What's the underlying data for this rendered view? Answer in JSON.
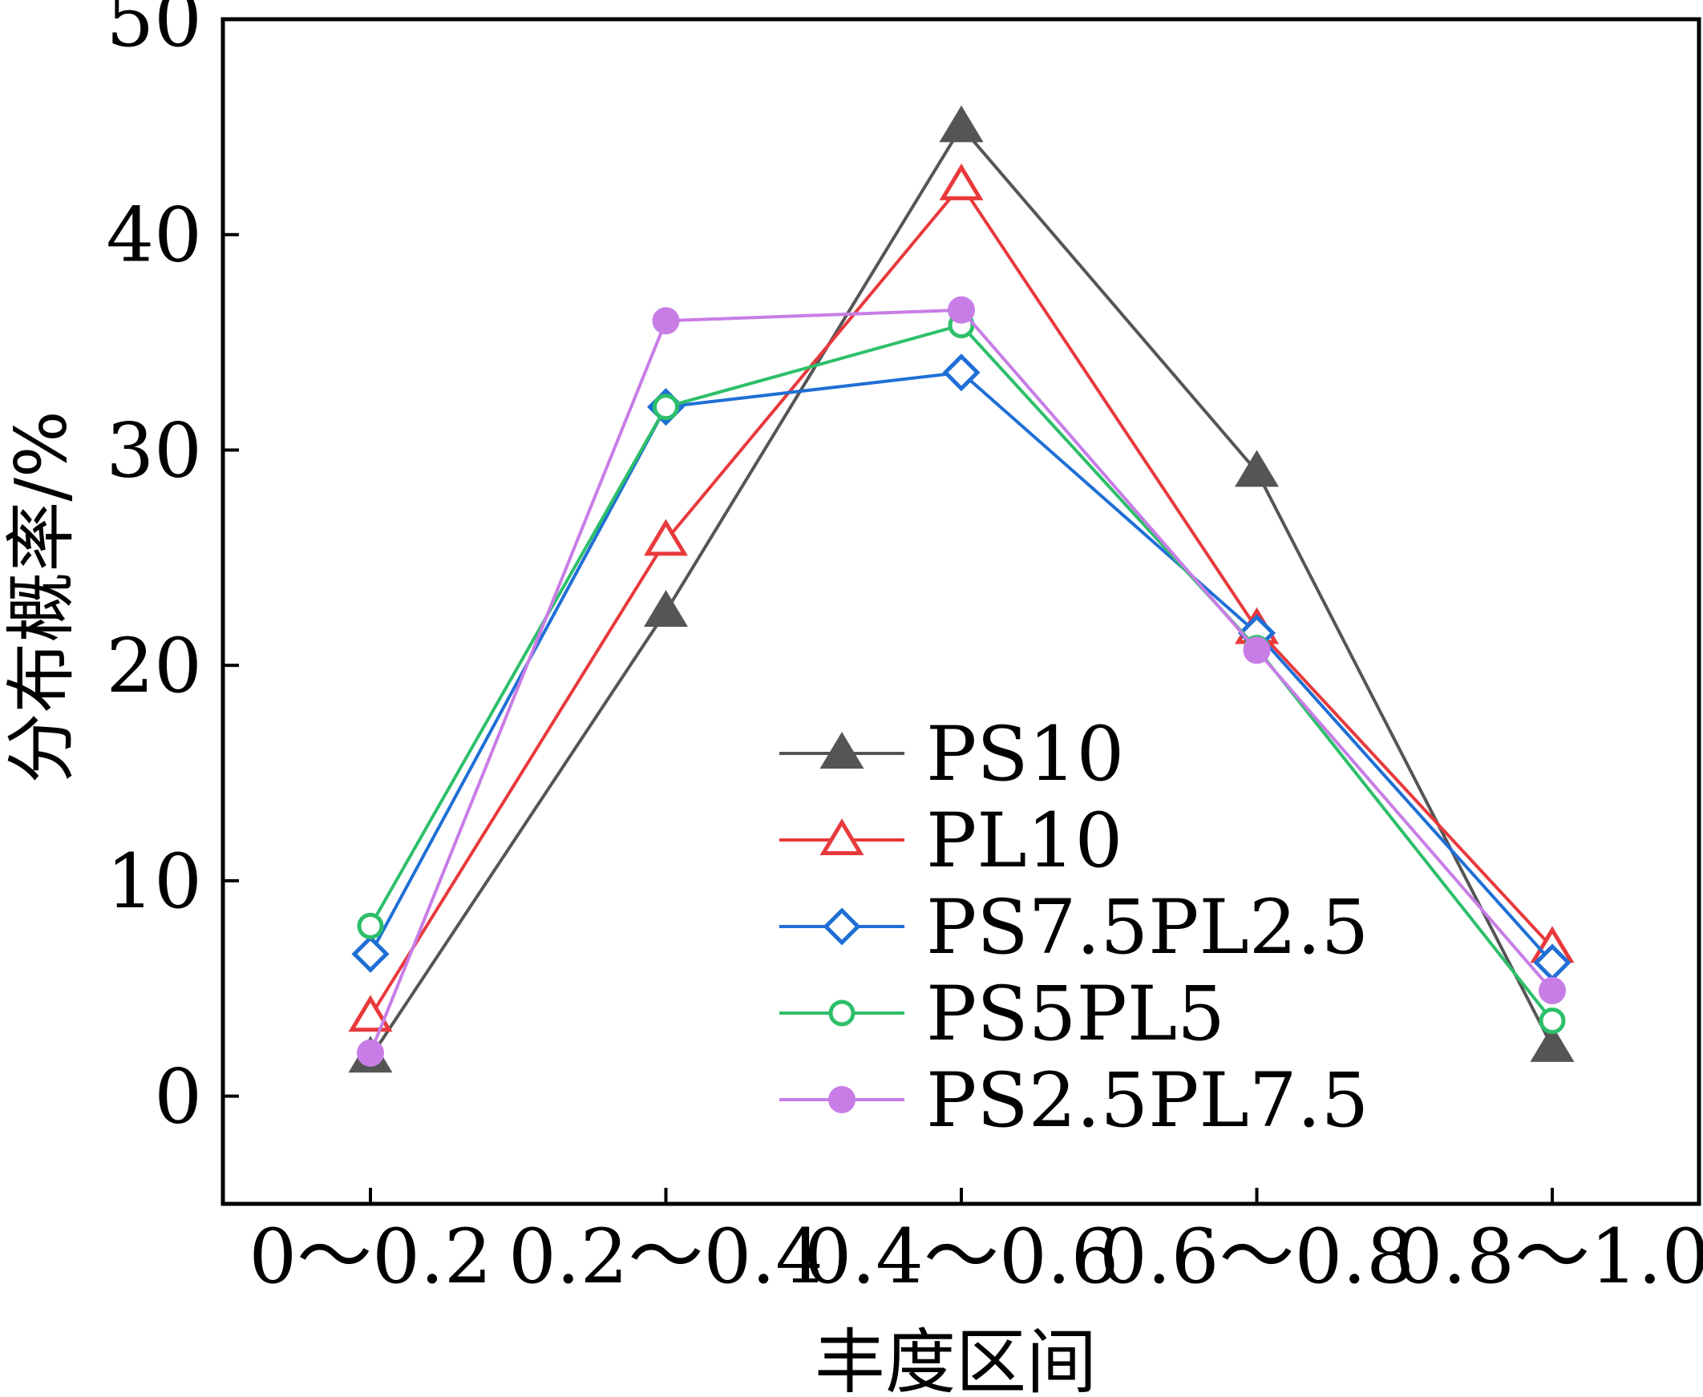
{
  "chart_data": {
    "type": "line",
    "categories": [
      "0～0.2",
      "0.2～0.4",
      "0.4～0.6",
      "0.6～0.8",
      "0.8～1.0"
    ],
    "xlabel": "丰度区间",
    "ylabel": "分布概率/%",
    "ylim": [
      -5,
      50
    ],
    "yticks": [
      0,
      10,
      20,
      30,
      40,
      50
    ],
    "grid": false,
    "legend_position": "bottom-center",
    "series": [
      {
        "name": "PS10",
        "values": [
          1.8,
          22.5,
          45.0,
          29.0,
          2.3
        ],
        "color": "#555555",
        "marker": "triangle-filled"
      },
      {
        "name": "PL10",
        "values": [
          3.7,
          25.8,
          42.3,
          21.7,
          6.9
        ],
        "color": "#e8393c",
        "marker": "triangle-open"
      },
      {
        "name": "PS7.5PL2.5",
        "values": [
          6.6,
          32.0,
          33.6,
          21.5,
          6.2
        ],
        "color": "#1f6fd6",
        "marker": "diamond-open"
      },
      {
        "name": "PS5PL5",
        "values": [
          7.9,
          32.0,
          35.8,
          20.8,
          3.5
        ],
        "color": "#2dbf6a",
        "marker": "circle-open"
      },
      {
        "name": "PS2.5PL7.5",
        "values": [
          2.0,
          36.0,
          36.5,
          20.7,
          4.9
        ],
        "color": "#c87de6",
        "marker": "circle-filled"
      }
    ]
  }
}
